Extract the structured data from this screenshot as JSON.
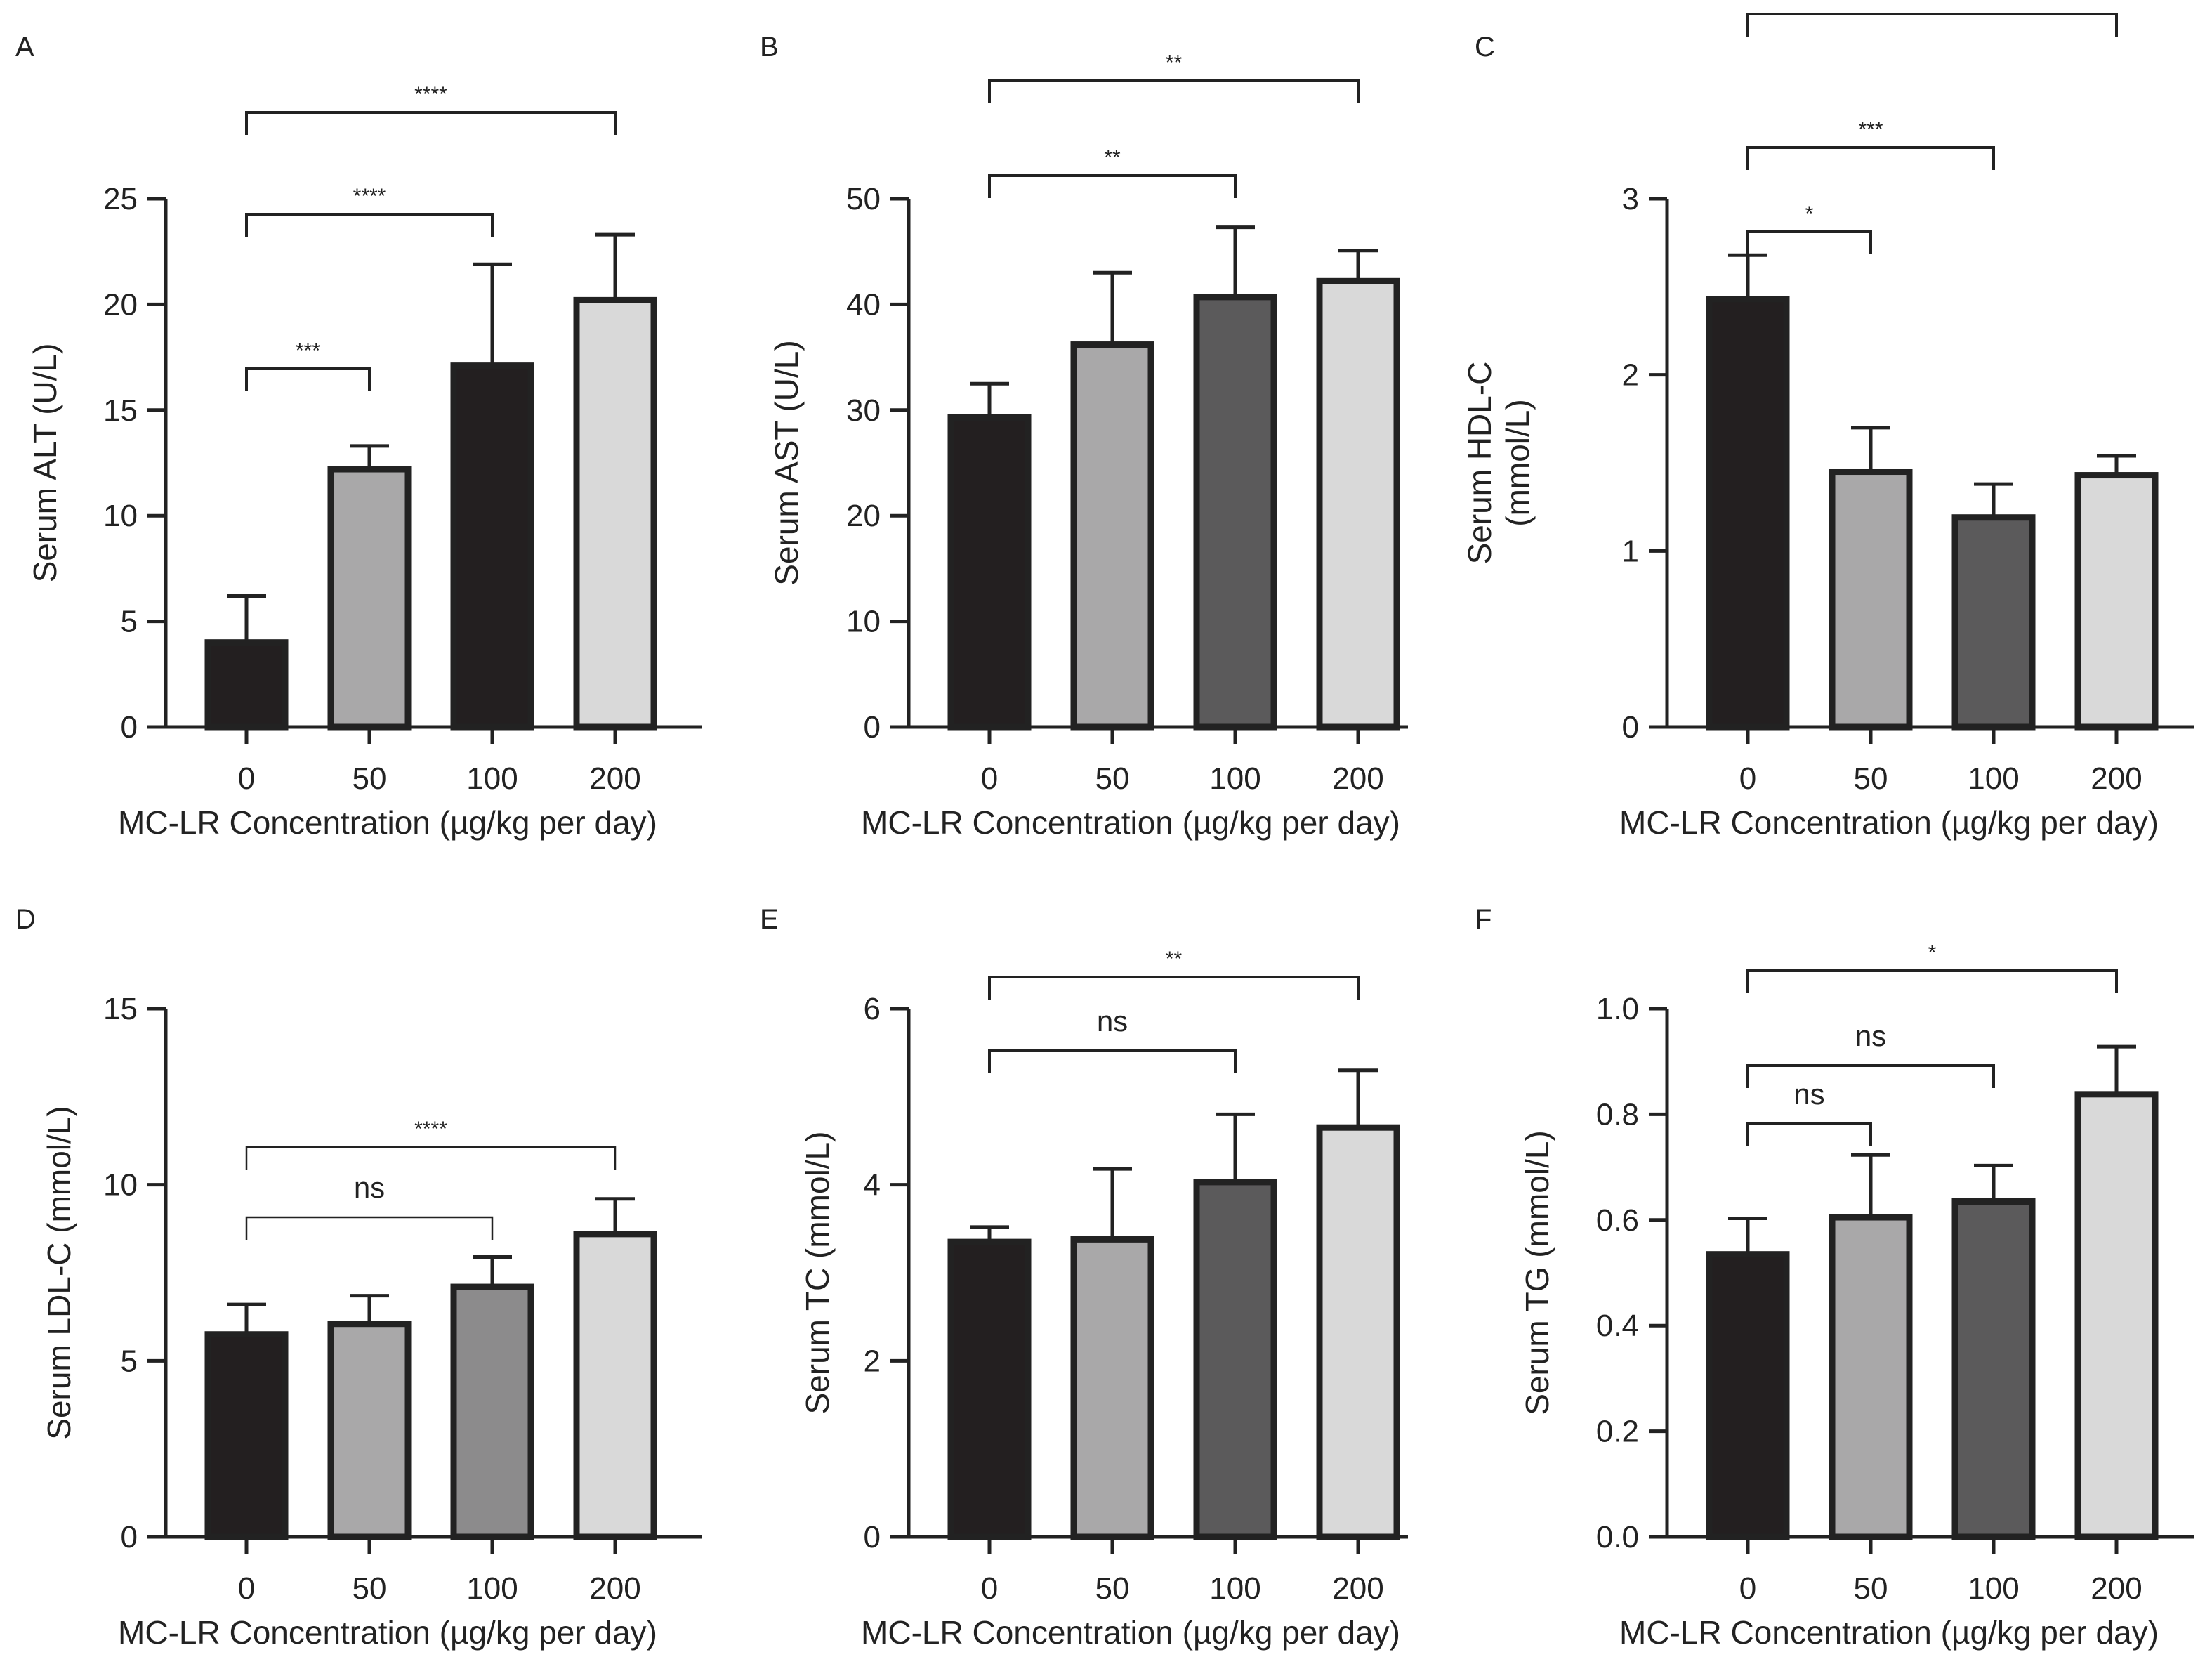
{
  "chart_data": [
    {
      "type": "bar",
      "panel": "A",
      "categories": [
        "0",
        "50",
        "100",
        "200"
      ],
      "xlabel": "MC-LR Concentration (µg/kg per day)",
      "ylabel": [
        "Serum ALT (U/L)"
      ],
      "ylim": [
        0,
        25
      ],
      "yticks": [
        "0",
        "5",
        "10",
        "15",
        "20",
        "25"
      ],
      "values": [
        4.0,
        12.2,
        17.1,
        20.2
      ],
      "errors": [
        2.2,
        1.1,
        4.8,
        3.1
      ],
      "colors": [
        "#231f20",
        "#a9a8a9",
        "#231f20",
        "#d9d9d9"
      ],
      "grid": false,
      "significance": [
        {
          "from": 0,
          "to": 1,
          "label": "***"
        },
        {
          "from": 0,
          "to": 2,
          "label": "****"
        },
        {
          "from": 0,
          "to": 3,
          "label": "****"
        }
      ]
    },
    {
      "type": "bar",
      "panel": "B",
      "categories": [
        "0",
        "50",
        "100",
        "200"
      ],
      "xlabel": "MC-LR Concentration (µg/kg per day)",
      "ylabel": [
        "Serum AST (U/L)"
      ],
      "ylim": [
        0,
        50
      ],
      "yticks": [
        "0",
        "10",
        "20",
        "30",
        "40",
        "50"
      ],
      "values": [
        29.3,
        36.2,
        40.7,
        42.2
      ],
      "errors": [
        3.2,
        6.8,
        6.6,
        2.9
      ],
      "colors": [
        "#231f20",
        "#a9a8a9",
        "#5b5a5b",
        "#d9d9d9"
      ],
      "grid": false,
      "significance": [
        {
          "from": 0,
          "to": 2,
          "label": "**"
        },
        {
          "from": 0,
          "to": 3,
          "label": "**"
        }
      ]
    },
    {
      "type": "bar",
      "panel": "C",
      "categories": [
        "0",
        "50",
        "100",
        "200"
      ],
      "xlabel": "MC-LR Concentration (µg/kg per day)",
      "ylabel": [
        "Serum HDL-C",
        "(mmol/L)"
      ],
      "ylim": [
        0,
        3
      ],
      "yticks": [
        "0",
        "1",
        "2",
        "3"
      ],
      "values": [
        2.43,
        1.45,
        1.19,
        1.43
      ],
      "errors": [
        0.25,
        0.25,
        0.19,
        0.11
      ],
      "colors": [
        "#231f20",
        "#a9a8a9",
        "#5b5a5b",
        "#d9d9d9"
      ],
      "grid": false,
      "significance": [
        {
          "from": 0,
          "to": 1,
          "label": "*"
        },
        {
          "from": 0,
          "to": 2,
          "label": "***"
        },
        {
          "from": 0,
          "to": 3,
          "label": "**"
        }
      ]
    },
    {
      "type": "bar",
      "panel": "D",
      "categories": [
        "0",
        "50",
        "100",
        "200"
      ],
      "xlabel": "MC-LR Concentration (µg/kg per day)",
      "ylabel": [
        "Serum LDL-C (mmol/L)"
      ],
      "ylim": [
        0,
        15
      ],
      "yticks": [
        "0",
        "5",
        "10",
        "15"
      ],
      "values": [
        5.75,
        6.05,
        7.1,
        8.6
      ],
      "errors": [
        0.85,
        0.8,
        0.85,
        1.0
      ],
      "colors": [
        "#231f20",
        "#a9a8a9",
        "#8c8b8c",
        "#d9d9d9"
      ],
      "grid": false,
      "significance": [
        {
          "from": 0,
          "to": 2,
          "label": "ns"
        },
        {
          "from": 0,
          "to": 3,
          "label": "****"
        }
      ]
    },
    {
      "type": "bar",
      "panel": "E",
      "categories": [
        "0",
        "50",
        "100",
        "200"
      ],
      "xlabel": "MC-LR Concentration (µg/kg per day)",
      "ylabel": [
        "Serum TC (mmol/L)"
      ],
      "ylim": [
        0,
        6
      ],
      "yticks": [
        "0",
        "2",
        "4",
        "6"
      ],
      "values": [
        3.35,
        3.38,
        4.03,
        4.65
      ],
      "errors": [
        0.17,
        0.8,
        0.77,
        0.65
      ],
      "colors": [
        "#231f20",
        "#a9a8a9",
        "#5b5a5b",
        "#d9d9d9"
      ],
      "grid": false,
      "significance": [
        {
          "from": 0,
          "to": 2,
          "label": "ns"
        },
        {
          "from": 0,
          "to": 3,
          "label": "**"
        }
      ]
    },
    {
      "type": "bar",
      "panel": "F",
      "categories": [
        "0",
        "50",
        "100",
        "200"
      ],
      "xlabel": "MC-LR Concentration (µg/kg per day)",
      "ylabel": [
        "Serum TG (mmol/L)"
      ],
      "ylim": [
        0,
        1.0
      ],
      "yticks": [
        "0.0",
        "0.2",
        "0.4",
        "0.6",
        "0.8",
        "1.0"
      ],
      "values": [
        0.535,
        0.605,
        0.635,
        0.838
      ],
      "errors": [
        0.068,
        0.118,
        0.068,
        0.09
      ],
      "colors": [
        "#231f20",
        "#a9a8a9",
        "#5b5a5b",
        "#d9d9d9"
      ],
      "grid": false,
      "significance": [
        {
          "from": 0,
          "to": 1,
          "label": "ns"
        },
        {
          "from": 0,
          "to": 2,
          "label": "ns"
        },
        {
          "from": 0,
          "to": 3,
          "label": "*"
        }
      ]
    }
  ]
}
